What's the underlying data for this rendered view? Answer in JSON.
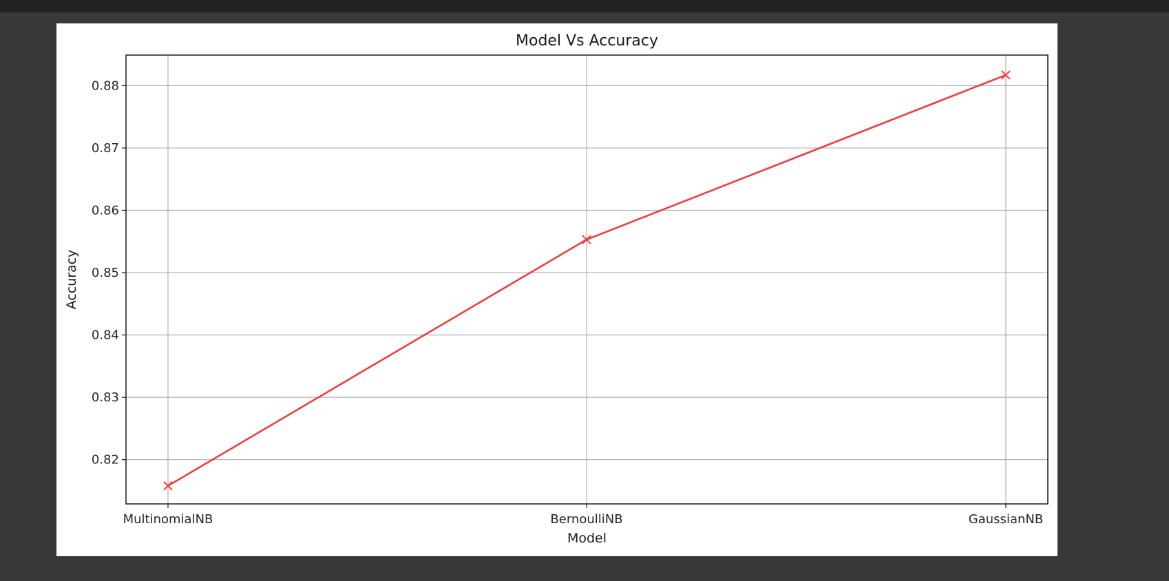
{
  "chart_data": {
    "type": "line",
    "title": "Model Vs Accuracy",
    "xlabel": "Model",
    "ylabel": "Accuracy",
    "categories": [
      "MultinomialNB",
      "BernoulliNB",
      "GaussianNB"
    ],
    "series": [
      {
        "values": [
          0.8158,
          0.8553,
          0.8817
        ],
        "color": "#f03c3c",
        "marker": "x"
      }
    ],
    "yticks": [
      "0.82",
      "0.83",
      "0.84",
      "0.85",
      "0.86",
      "0.87",
      "0.88"
    ],
    "ylim": [
      0.8129,
      0.8849
    ],
    "grid": true
  }
}
